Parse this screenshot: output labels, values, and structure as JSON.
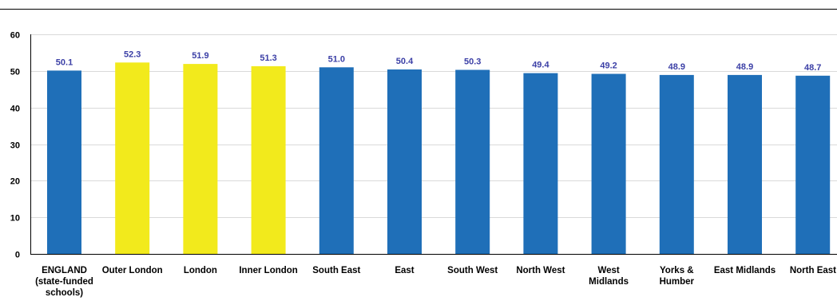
{
  "chart_data": {
    "type": "bar",
    "categories": [
      "ENGLAND (state-funded schools)",
      "Outer London",
      "London",
      "Inner London",
      "South East",
      "East",
      "South West",
      "North West",
      "West Midlands",
      "Yorks & Humber",
      "East Midlands",
      "North East"
    ],
    "category_lines": [
      [
        "ENGLAND",
        "(state-funded",
        "schools)"
      ],
      [
        "Outer London"
      ],
      [
        "London"
      ],
      [
        "Inner London"
      ],
      [
        "South East"
      ],
      [
        "East"
      ],
      [
        "South West"
      ],
      [
        "North West"
      ],
      [
        "West",
        "Midlands"
      ],
      [
        "Yorks &",
        "Humber"
      ],
      [
        "East Midlands"
      ],
      [
        "North East"
      ]
    ],
    "values": [
      50.1,
      52.3,
      51.9,
      51.3,
      51.0,
      50.4,
      50.3,
      49.4,
      49.2,
      48.9,
      48.9,
      48.7
    ],
    "value_labels": [
      "50.1",
      "52.3",
      "51.9",
      "51.3",
      "51.0",
      "50.4",
      "50.3",
      "49.4",
      "49.2",
      "48.9",
      "48.9",
      "48.7"
    ],
    "highlight": [
      false,
      true,
      true,
      true,
      false,
      false,
      false,
      false,
      false,
      false,
      false,
      false
    ],
    "title": "",
    "xlabel": "",
    "ylabel": "",
    "ylim": [
      0,
      60
    ],
    "yticks": [
      0,
      10,
      20,
      30,
      40,
      50,
      60
    ],
    "grid": true,
    "colors": {
      "bar": "#1F6FB8",
      "highlight_bar": "#F2EA1C",
      "value_label": "#3B3FA6",
      "grid": "#D9D9D9",
      "axis": "#000000"
    }
  }
}
